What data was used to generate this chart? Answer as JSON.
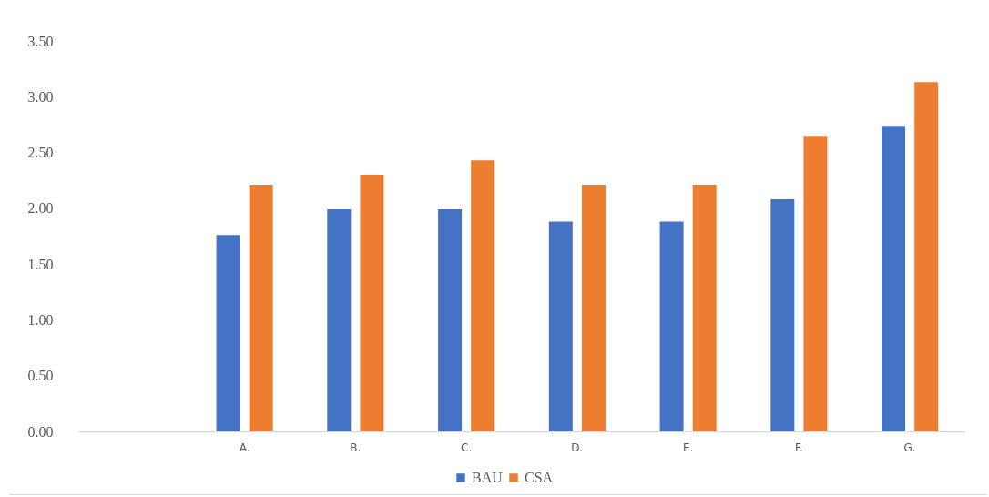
{
  "chart_data": {
    "type": "bar",
    "categories": [
      null,
      "A.",
      "B.",
      "C.",
      "D.",
      "E.",
      "F.",
      "G."
    ],
    "series": [
      {
        "name": "BAU",
        "color": "#4472c4",
        "values": [
          null,
          1.76,
          1.99,
          1.99,
          1.88,
          1.88,
          2.08,
          2.74
        ]
      },
      {
        "name": "CSA",
        "color": "#ed7d31",
        "values": [
          null,
          2.21,
          2.3,
          2.43,
          2.21,
          2.21,
          2.65,
          3.13
        ]
      }
    ],
    "ylim": [
      0,
      3.5
    ],
    "yticks": [
      {
        "value": 0,
        "label": "0.00"
      },
      {
        "value": 0.5,
        "label": "0.50"
      },
      {
        "value": 1,
        "label": "1.00"
      },
      {
        "value": 1.5,
        "label": "1.50"
      },
      {
        "value": 2,
        "label": "2.00"
      },
      {
        "value": 2.5,
        "label": "2.50"
      },
      {
        "value": 3,
        "label": "3.00"
      },
      {
        "value": 3.5,
        "label": "3.50"
      }
    ],
    "grid": false,
    "legend": "bottom"
  }
}
